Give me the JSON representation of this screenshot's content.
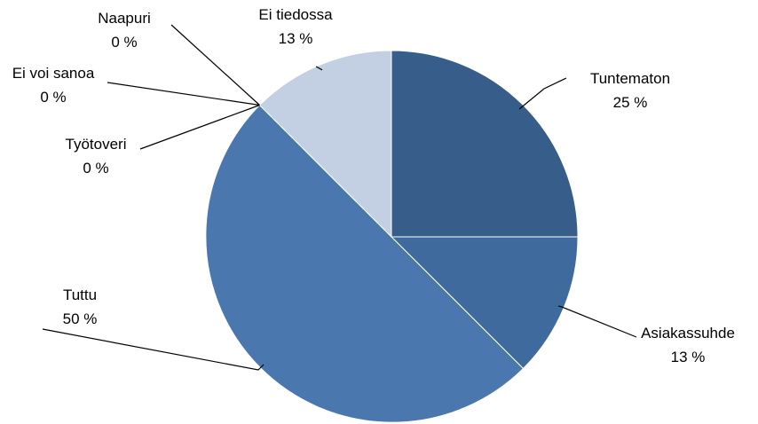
{
  "chart_data": {
    "type": "pie",
    "title": "",
    "slices": [
      {
        "label": "Tuntematon",
        "value": 25,
        "value_label": "25 %",
        "color": "#375d8a"
      },
      {
        "label": "Asiakassuhde",
        "value": 12.5,
        "value_label": "13 %",
        "color": "#3f6a9e"
      },
      {
        "label": "Tuttu",
        "value": 50,
        "value_label": "50 %",
        "color": "#4a77ad"
      },
      {
        "label": "Työtoveri",
        "value": 0,
        "value_label": "0 %",
        "color": "#6f8fc0"
      },
      {
        "label": "Ei voi sanoa",
        "value": 0,
        "value_label": "0 %",
        "color": "#8da6cf"
      },
      {
        "label": "Naapuri",
        "value": 0,
        "value_label": "0 %",
        "color": "#a8bbdb"
      },
      {
        "label": "Ei tiedossa",
        "value": 12.5,
        "value_label": "13 %",
        "color": "#c3cfe3"
      }
    ],
    "start_angle_deg": 0,
    "direction": "clockwise",
    "legend": "none",
    "label_color": "#000000",
    "leader_line_color": "#000000"
  }
}
